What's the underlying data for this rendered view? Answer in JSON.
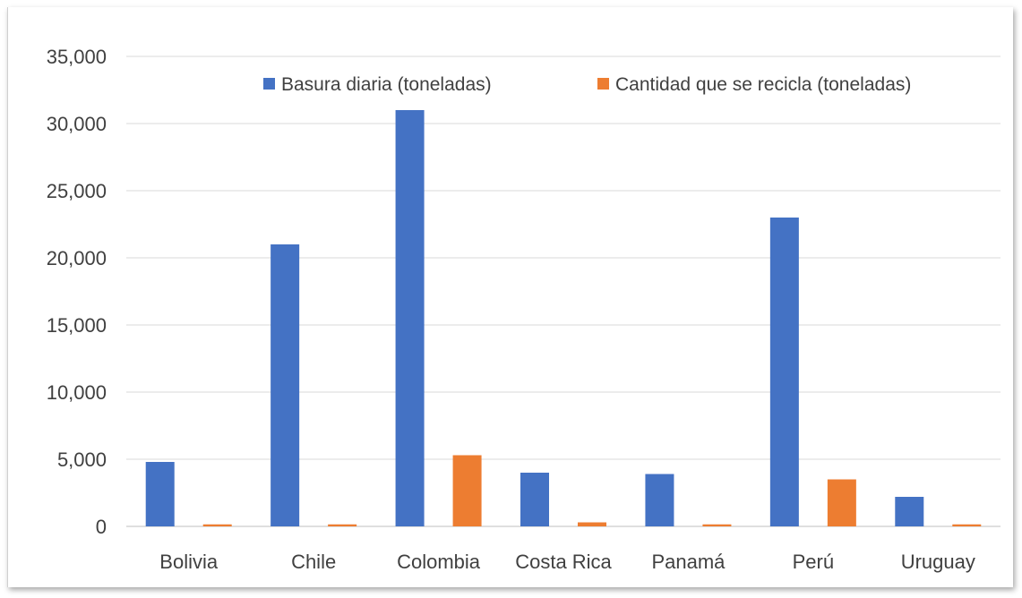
{
  "chart_data": {
    "type": "bar",
    "categories": [
      "Bolivia",
      "Chile",
      "Colombia",
      "Costa Rica",
      "Panamá",
      "Perú",
      "Uruguay"
    ],
    "series": [
      {
        "name": "Basura diaria (toneladas)",
        "color": "#4472C4",
        "values": [
          4800,
          21000,
          31000,
          4000,
          3900,
          23000,
          2200
        ]
      },
      {
        "name": "Cantidad que se recicla (toneladas)",
        "color": "#ED7D31",
        "values": [
          150,
          150,
          5300,
          300,
          150,
          3500,
          150
        ]
      }
    ],
    "y_ticks": [
      "0",
      "5,000",
      "10,000",
      "15,000",
      "20,000",
      "25,000",
      "30,000",
      "35,000"
    ],
    "ylim": [
      0,
      35000
    ],
    "grid": true,
    "legend_position": "top-right"
  }
}
